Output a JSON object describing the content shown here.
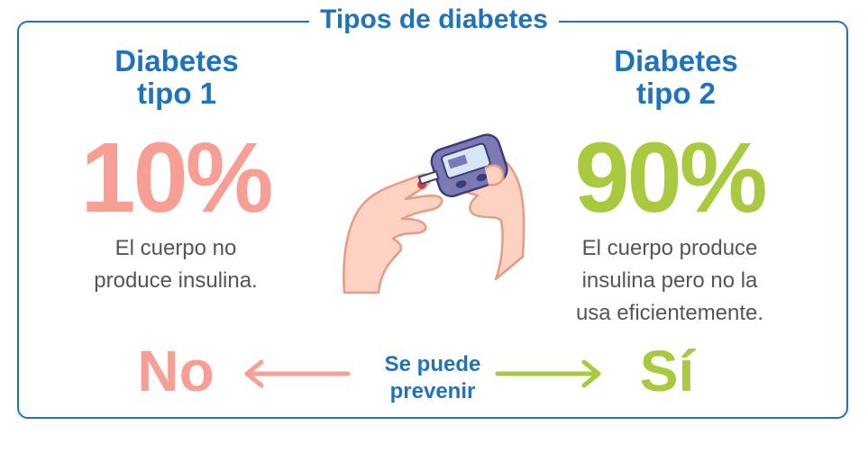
{
  "title": "Tipos de diabetes",
  "type1": {
    "heading_line1": "Diabetes",
    "heading_line2": "tipo 1",
    "percent": "10%",
    "description_line1": "El cuerpo no",
    "description_line2": "produce insulina.",
    "answer": "No"
  },
  "type2": {
    "heading_line1": "Diabetes",
    "heading_line2": "tipo 2",
    "percent": "90%",
    "description_line1": "El cuerpo produce",
    "description_line2": "insulina pero no la",
    "description_line3": "usa eficientemente.",
    "answer": "Sí"
  },
  "prevention": {
    "line1": "Se puede",
    "line2": "prevenir"
  },
  "colors": {
    "accent_blue": "#1f73bd",
    "type1_pink": "#f79f94",
    "type2_green": "#a9c93f",
    "text_gray": "#555555"
  },
  "icons": [
    "glucose-meter-icon",
    "left-arrow-icon",
    "right-arrow-icon"
  ]
}
